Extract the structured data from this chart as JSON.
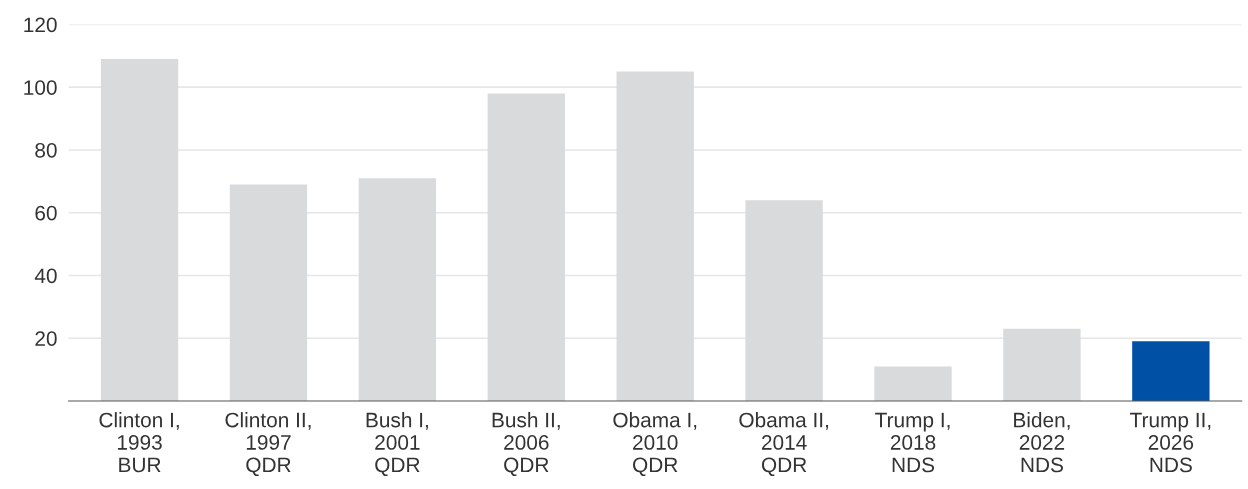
{
  "chart_data": {
    "type": "bar",
    "categories": [
      "Clinton I,\n1993\nBUR",
      "Clinton II,\n1997\nQDR",
      "Bush I,\n2001\nQDR",
      "Bush II,\n2006\nQDR",
      "Obama I,\n2010\nQDR",
      "Obama II,\n2014\nQDR",
      "Trump I,\n2018\nNDS",
      "Biden,\n2022\nNDS",
      "Trump II,\n2026\nNDS"
    ],
    "values": [
      109,
      69,
      71,
      98,
      105,
      64,
      11,
      23,
      19
    ],
    "colors": [
      "#d9dadb",
      "#d9dadb",
      "#d9dadb",
      "#d9dadb",
      "#d9dadb",
      "#d9dadb",
      "#d9dadb",
      "#d9dadb",
      "#0051a5"
    ],
    "ylim": [
      0,
      120
    ],
    "yticks": [
      20,
      40,
      60,
      80,
      100,
      120
    ],
    "grid": "y"
  }
}
